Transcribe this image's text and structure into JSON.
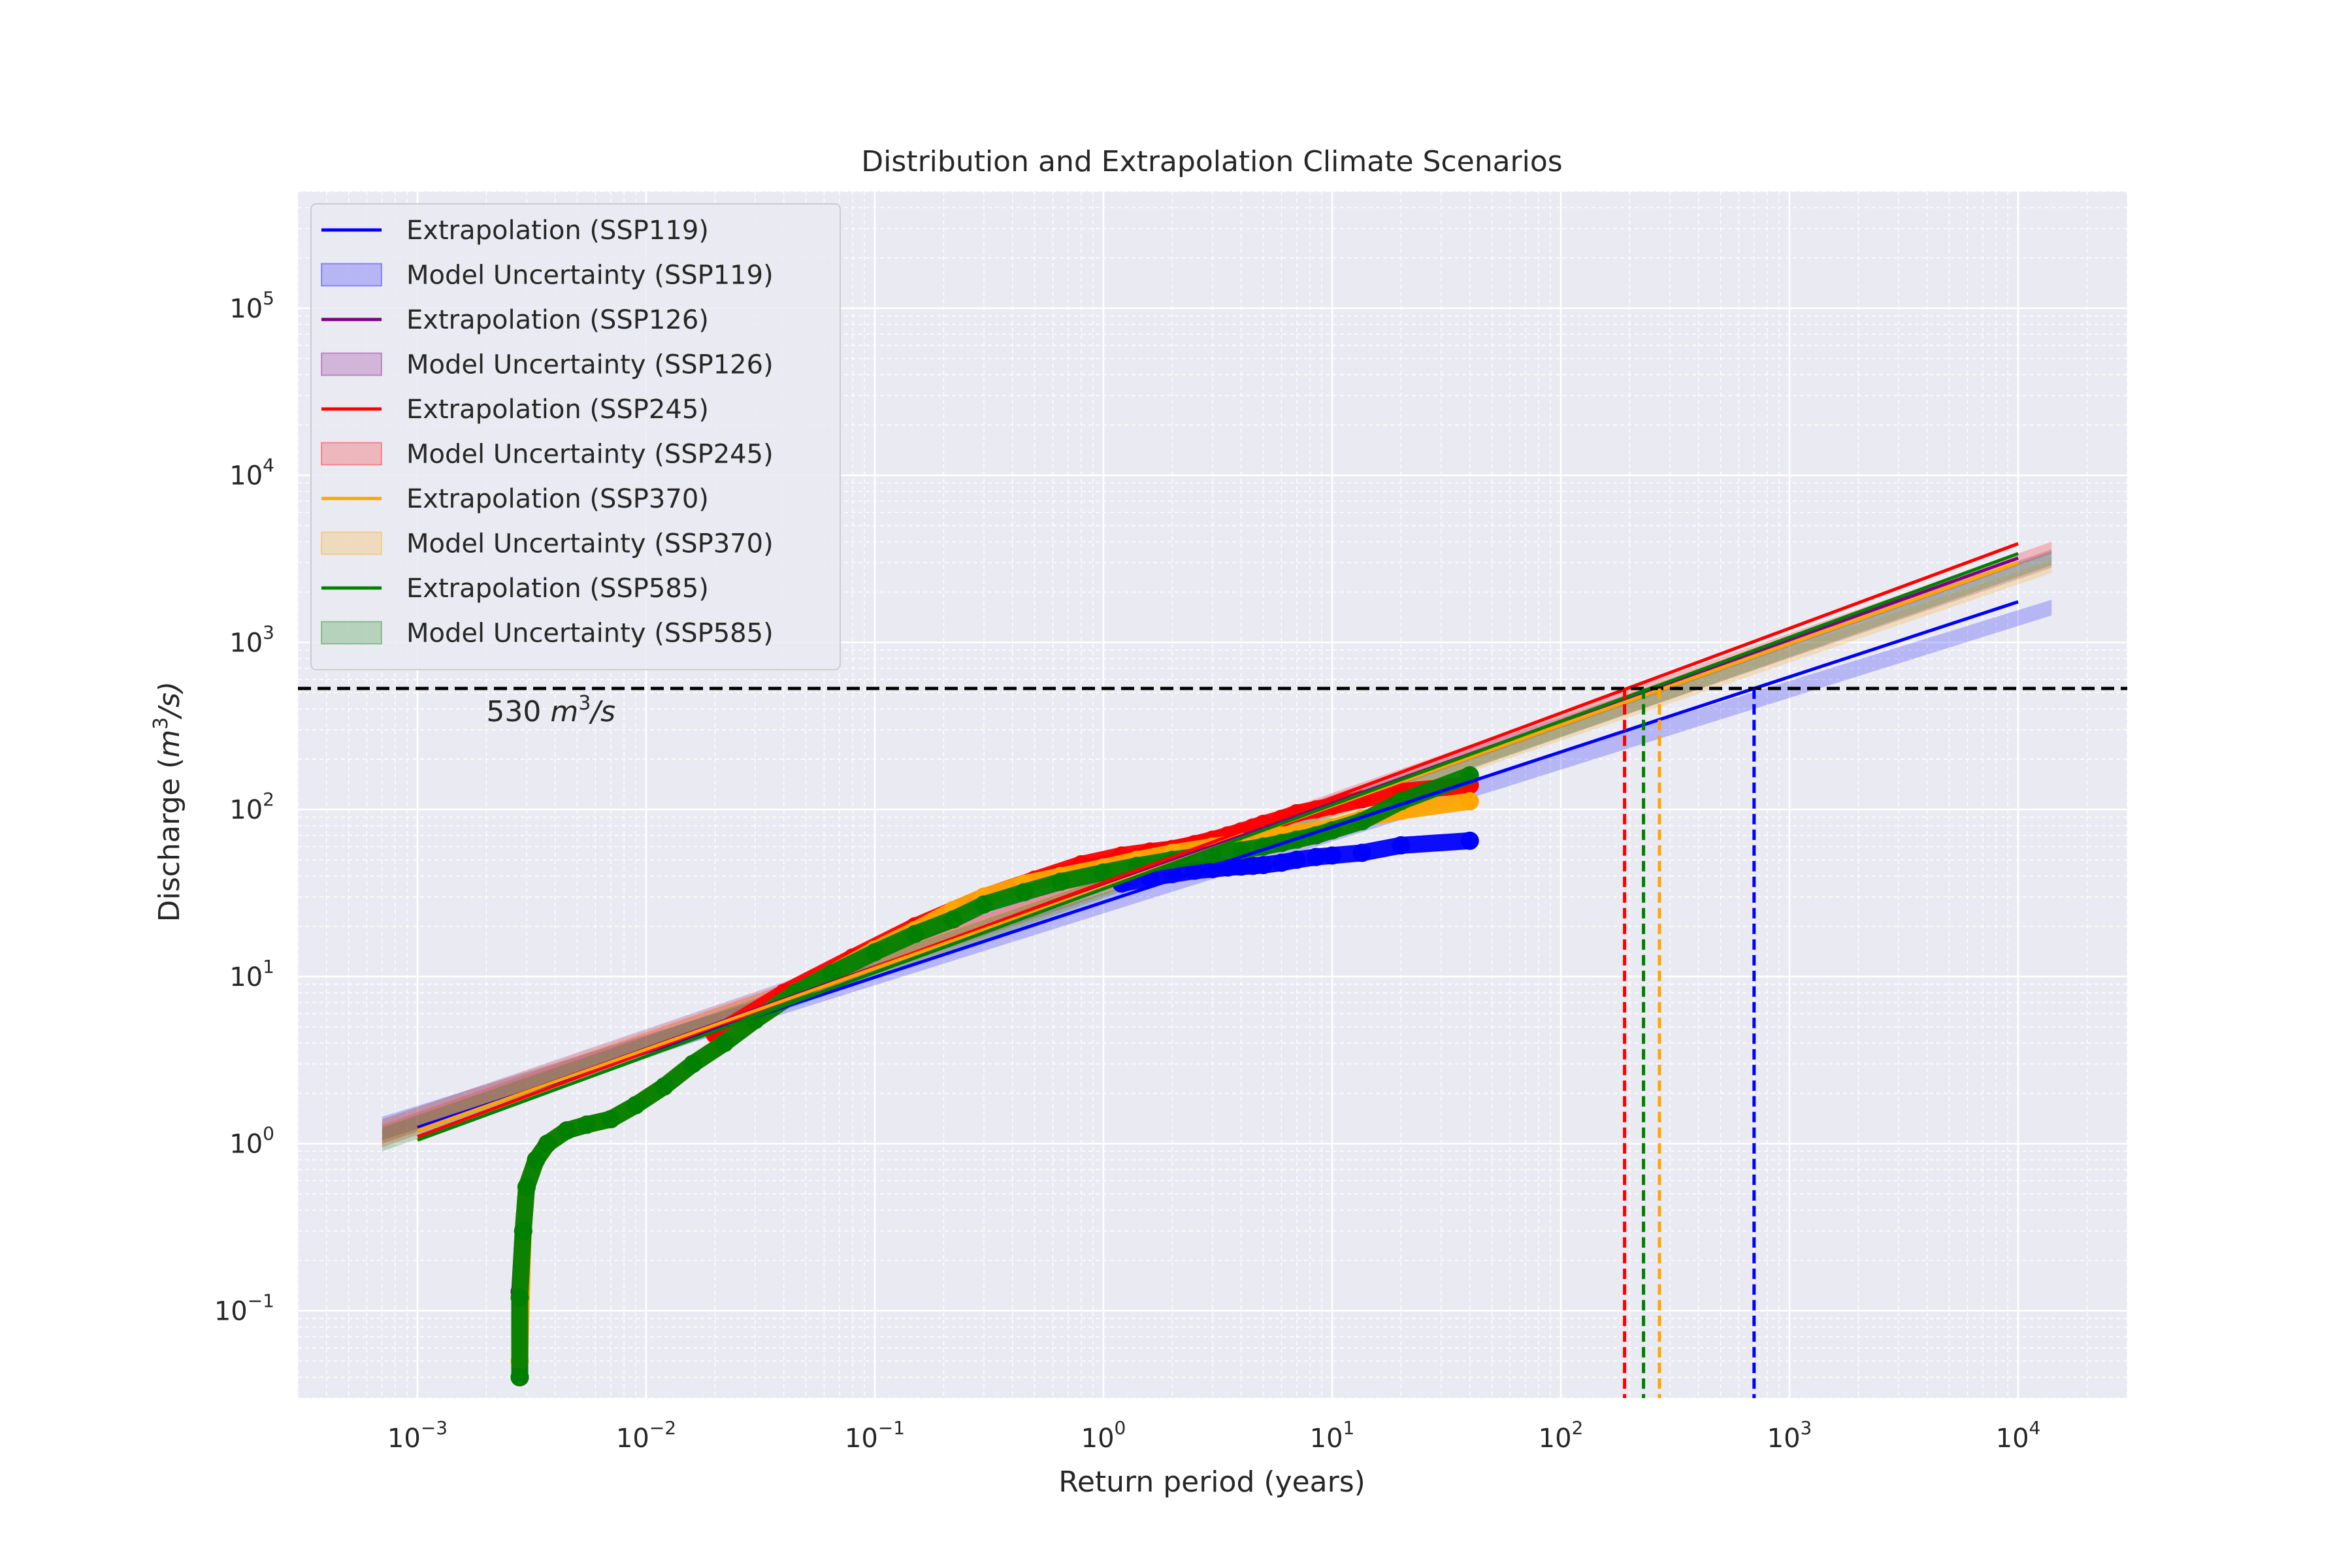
{
  "chart_data": {
    "type": "line",
    "title": "Distribution and Extrapolation Climate Scenarios",
    "xlabel": "Return period (years)",
    "ylabel_prefix": "Discharge (",
    "ylabel_unit_base": "m",
    "ylabel_unit_exp": "3",
    "ylabel_unit_tail": "/s)",
    "x_scale": "log",
    "y_scale": "log",
    "xlim": [
      0.0003,
      30000
    ],
    "ylim": [
      0.03,
      500000
    ],
    "grid": true,
    "legend_position": "upper-left",
    "x_ticks": [
      {
        "value": 0.001,
        "base": "10",
        "exp": "−3"
      },
      {
        "value": 0.01,
        "base": "10",
        "exp": "−2"
      },
      {
        "value": 0.1,
        "base": "10",
        "exp": "−1"
      },
      {
        "value": 1,
        "base": "10",
        "exp": "0"
      },
      {
        "value": 10,
        "base": "10",
        "exp": "1"
      },
      {
        "value": 100,
        "base": "10",
        "exp": "2"
      },
      {
        "value": 1000,
        "base": "10",
        "exp": "3"
      },
      {
        "value": 10000,
        "base": "10",
        "exp": "4"
      }
    ],
    "y_ticks": [
      {
        "value": 0.1,
        "base": "10",
        "exp": "−1"
      },
      {
        "value": 1,
        "base": "10",
        "exp": "0"
      },
      {
        "value": 10,
        "base": "10",
        "exp": "1"
      },
      {
        "value": 100,
        "base": "10",
        "exp": "2"
      },
      {
        "value": 1000,
        "base": "10",
        "exp": "3"
      },
      {
        "value": 10000,
        "base": "10",
        "exp": "4"
      },
      {
        "value": 100000,
        "base": "10",
        "exp": "5"
      }
    ],
    "threshold": {
      "value": 530,
      "label_number": "530 ",
      "label_unit_base": "m",
      "label_unit_exp": "3",
      "label_unit_tail": "/s"
    },
    "series": [
      {
        "name": "Extrapolation (SSP119)",
        "band_name": "Model Uncertainty (SSP119)",
        "color": "#0000ff",
        "line": {
          "x": [
            0.001,
            10000
          ],
          "y": [
            1.25,
            1750
          ]
        },
        "band": {
          "x": [
            0.0007,
            14000
          ],
          "upper": [
            1.45,
            1800
          ],
          "lower": [
            1.05,
            1450
          ]
        },
        "return_period_at_threshold": 700,
        "points": {
          "x": [
            1.2,
            1.6,
            2.0,
            2.5,
            3.0,
            3.5,
            4.0,
            4.5,
            5.0,
            6.0,
            7.0,
            8.5,
            10.0,
            13.5,
            20.0,
            40.0
          ],
          "y": [
            36,
            39,
            41,
            43,
            44,
            45,
            45.5,
            46,
            46.5,
            48,
            50,
            52,
            53,
            55,
            61,
            65
          ]
        }
      },
      {
        "name": "Extrapolation (SSP126)",
        "band_name": "Model Uncertainty (SSP126)",
        "color": "#800080",
        "line": {
          "x": [
            0.001,
            10000
          ],
          "y": [
            1.2,
            3200
          ]
        },
        "band": {
          "x": [
            0.0007,
            14000
          ],
          "upper": [
            1.4,
            3600
          ],
          "lower": [
            1.0,
            2800
          ]
        },
        "points": {
          "x": [
            0.0028,
            0.0028,
            0.0029,
            0.003,
            0.0033,
            0.0037,
            0.0045,
            0.0055,
            0.007,
            0.009,
            0.012,
            0.016,
            0.022,
            0.03,
            0.045,
            0.065,
            0.1,
            0.15,
            0.22,
            0.3,
            0.45,
            0.65,
            1.0,
            1.4,
            2.0,
            3.0,
            4.0,
            5.0
          ],
          "y": [
            0.04,
            0.13,
            0.3,
            0.55,
            0.8,
            1.0,
            1.2,
            1.3,
            1.4,
            1.7,
            2.2,
            3.0,
            4.0,
            5.5,
            8.0,
            10.5,
            14.5,
            19.0,
            25.0,
            30.0,
            36.0,
            41.0,
            47.0,
            52.0,
            58.0,
            65.0,
            72.0,
            80.0
          ]
        }
      },
      {
        "name": "Extrapolation (SSP245)",
        "band_name": "Model Uncertainty (SSP245)",
        "color": "#ff0000",
        "line": {
          "x": [
            0.001,
            10000
          ],
          "y": [
            1.1,
            3900
          ]
        },
        "band": {
          "x": [
            0.0007,
            14000
          ],
          "upper": [
            1.3,
            4000
          ],
          "lower": [
            0.95,
            3400
          ]
        },
        "return_period_at_threshold": 190,
        "points": {
          "x": [
            0.02,
            0.04,
            0.08,
            0.15,
            0.3,
            0.5,
            0.8,
            1.2,
            1.6,
            2.0,
            2.5,
            3.0,
            3.5,
            4.0,
            4.5,
            5.0,
            6.0,
            7.0,
            8.5,
            10.0,
            13.5,
            20.0,
            40.0
          ],
          "y": [
            4.5,
            8.0,
            13.0,
            20.0,
            30.0,
            38.0,
            47.0,
            53.0,
            56.0,
            58.0,
            62.0,
            66.0,
            70.0,
            74.0,
            78.0,
            82.0,
            88.0,
            95.0,
            100.0,
            105.0,
            115.0,
            128.0,
            140.0
          ]
        }
      },
      {
        "name": "Extrapolation (SSP370)",
        "band_name": "Model Uncertainty (SSP370)",
        "color": "#ffa500",
        "line": {
          "x": [
            0.001,
            10000
          ],
          "y": [
            1.2,
            3000
          ]
        },
        "band": {
          "x": [
            0.0007,
            14000
          ],
          "upper": [
            1.4,
            3100
          ],
          "lower": [
            1.0,
            2600
          ]
        },
        "return_period_at_threshold": 270,
        "points": {
          "x": [
            0.0028,
            0.0029,
            0.003,
            0.0033,
            0.0037,
            0.0045,
            0.0055,
            0.007,
            0.009,
            0.012,
            0.016,
            0.022,
            0.03,
            0.045,
            0.065,
            0.1,
            0.15,
            0.22,
            0.3,
            0.45,
            0.65,
            1.0,
            1.4,
            2.0,
            3.0,
            4.0,
            5.0,
            6.0,
            7.0,
            8.5,
            10.0,
            13.5,
            20.0,
            40.0
          ],
          "y": [
            0.05,
            0.3,
            0.55,
            0.8,
            1.0,
            1.2,
            1.3,
            1.4,
            1.7,
            2.2,
            3.0,
            4.0,
            5.5,
            8.0,
            10.5,
            14.5,
            19.0,
            25.0,
            30.0,
            36.0,
            40.0,
            45.0,
            50.0,
            55.0,
            60.0,
            64.0,
            67.0,
            70.0,
            72.0,
            75.0,
            78.0,
            88.0,
            98.0,
            112.0
          ]
        }
      },
      {
        "name": "Extrapolation (SSP585)",
        "band_name": "Model Uncertainty (SSP585)",
        "color": "#008000",
        "line": {
          "x": [
            0.001,
            10000
          ],
          "y": [
            1.05,
            3400
          ]
        },
        "band": {
          "x": [
            0.0007,
            14000
          ],
          "upper": [
            1.25,
            3500
          ],
          "lower": [
            0.9,
            2900
          ]
        },
        "return_period_at_threshold": 230,
        "points": {
          "x": [
            0.0028,
            0.0028,
            0.0029,
            0.003,
            0.0033,
            0.0037,
            0.0045,
            0.0055,
            0.007,
            0.009,
            0.012,
            0.016,
            0.022,
            0.03,
            0.045,
            0.065,
            0.1,
            0.15,
            0.22,
            0.3,
            0.45,
            0.65,
            1.0,
            1.4,
            2.0,
            3.0,
            4.0,
            5.0,
            6.0,
            7.0,
            8.5,
            10.0,
            13.5,
            20.0,
            40.0
          ],
          "y": [
            0.04,
            0.12,
            0.3,
            0.55,
            0.8,
            1.0,
            1.2,
            1.3,
            1.4,
            1.7,
            2.2,
            3.0,
            4.0,
            5.5,
            8.0,
            10.5,
            14.0,
            18.0,
            22.0,
            27.0,
            32.0,
            37.0,
            42.0,
            46.0,
            50.0,
            54.0,
            57.0,
            60.0,
            63.0,
            66.0,
            70.0,
            75.0,
            85.0,
            112.0,
            160.0
          ]
        }
      }
    ]
  }
}
